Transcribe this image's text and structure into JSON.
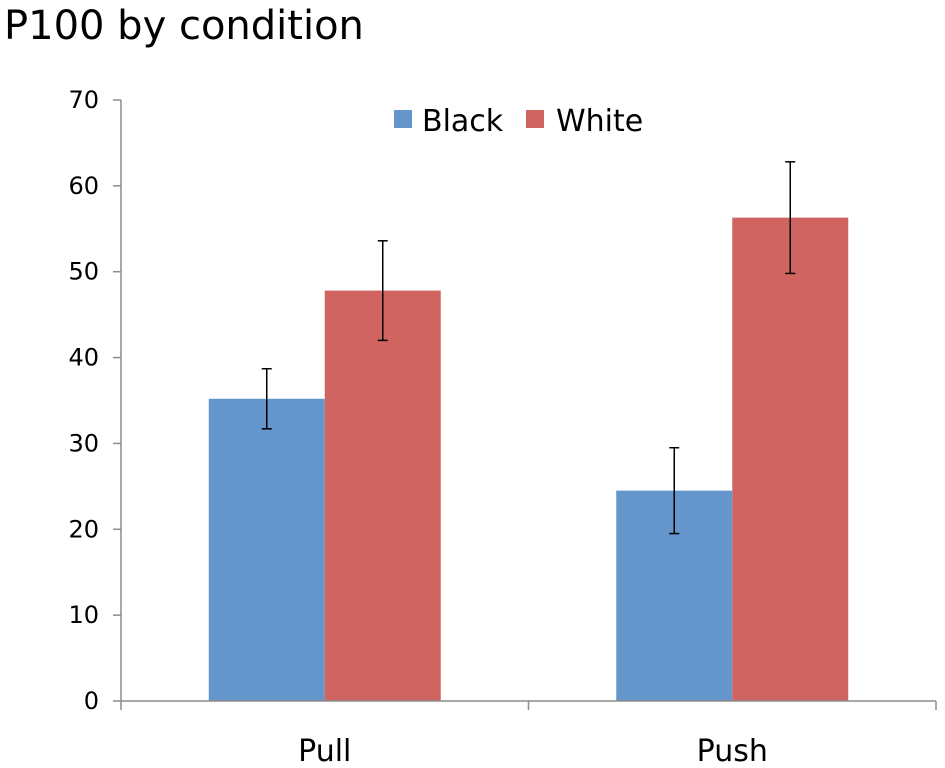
{
  "chart_data": {
    "type": "bar",
    "title": "P100 by condition",
    "categories": [
      "Pull",
      "Push"
    ],
    "series": [
      {
        "name": "Black",
        "color": "#6495cb",
        "values": [
          35.2,
          24.5
        ],
        "error": [
          3.5,
          5.0
        ]
      },
      {
        "name": "White",
        "color": "#cf6461",
        "values": [
          47.8,
          56.3
        ],
        "error": [
          5.8,
          6.5
        ]
      }
    ],
    "ylim": [
      0,
      70
    ],
    "yticks": [
      "0",
      "10",
      "20",
      "30",
      "40",
      "50",
      "60",
      "70"
    ],
    "xlabel": "",
    "ylabel": "",
    "grid": false,
    "legend_position": "top-center"
  }
}
